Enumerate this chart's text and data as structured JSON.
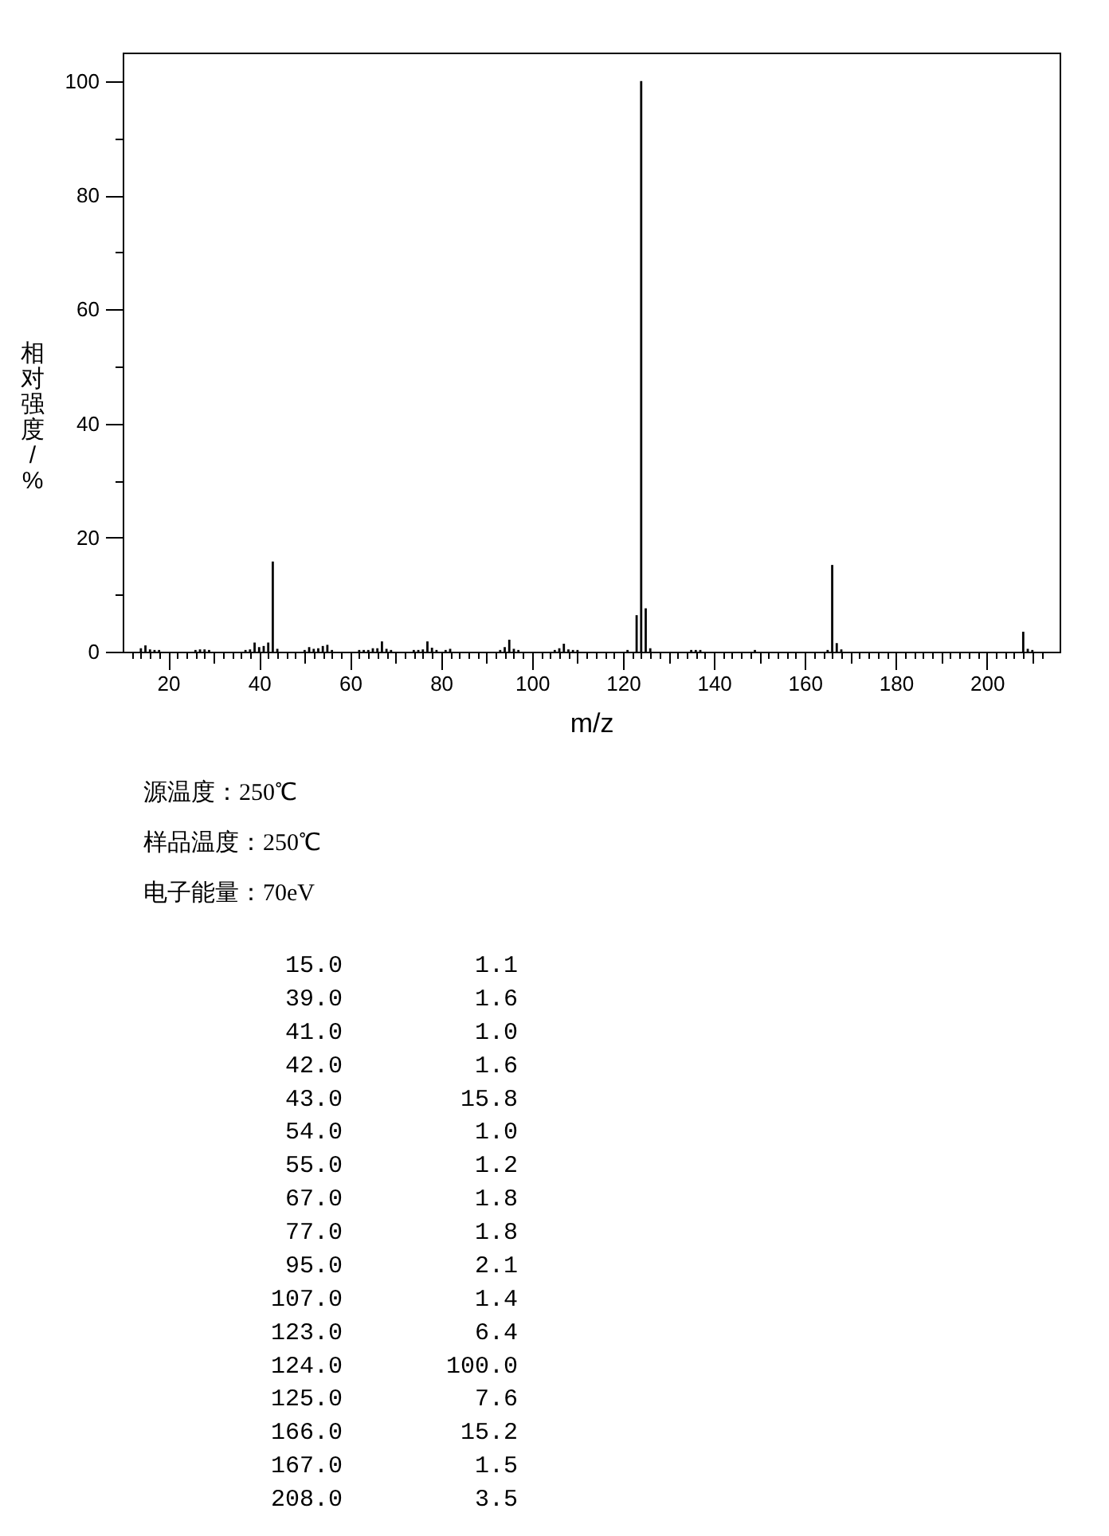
{
  "chart_data": {
    "type": "bar",
    "xlabel": "m/z",
    "ylabel": "相对强度/%",
    "color": "#000000",
    "x": [
      14,
      15,
      16,
      17,
      18,
      26,
      27,
      28,
      29,
      37,
      38,
      39,
      40,
      41,
      42,
      43,
      44,
      50,
      51,
      52,
      53,
      54,
      55,
      56,
      62,
      63,
      64,
      65,
      66,
      67,
      68,
      69,
      74,
      75,
      76,
      77,
      78,
      79,
      81,
      82,
      93,
      94,
      95,
      96,
      97,
      105,
      106,
      107,
      108,
      109,
      110,
      121,
      123,
      124,
      125,
      126,
      135,
      136,
      137,
      149,
      165,
      166,
      167,
      168,
      208,
      209,
      210
    ],
    "values": [
      0.6,
      1.1,
      0.4,
      0.3,
      0.3,
      0.3,
      0.4,
      0.4,
      0.3,
      0.3,
      0.4,
      1.6,
      0.8,
      1.0,
      1.6,
      15.8,
      0.5,
      0.3,
      0.8,
      0.5,
      0.6,
      1.0,
      1.2,
      0.3,
      0.3,
      0.3,
      0.3,
      0.6,
      0.6,
      1.8,
      0.5,
      0.3,
      0.3,
      0.3,
      0.4,
      1.8,
      0.7,
      0.3,
      0.3,
      0.5,
      0.3,
      0.8,
      2.1,
      0.5,
      0.3,
      0.3,
      0.6,
      1.4,
      0.4,
      0.3,
      0.3,
      0.3,
      6.4,
      100.0,
      7.6,
      0.6,
      0.3,
      0.3,
      0.3,
      0.3,
      0.3,
      15.2,
      1.5,
      0.4,
      3.5,
      0.5,
      0.3
    ],
    "xlim": [
      10,
      216
    ],
    "ylim": [
      0,
      105
    ],
    "xticks": [
      {
        "value": 12,
        "label": null
      },
      {
        "value": 14,
        "label": null
      },
      {
        "value": 16,
        "label": null
      },
      {
        "value": 18,
        "label": null
      },
      20,
      {
        "value": 22,
        "label": null
      },
      {
        "value": 24,
        "label": null
      },
      {
        "value": 26,
        "label": null
      },
      {
        "value": 28,
        "label": null
      },
      {
        "value": 30,
        "label": null
      },
      {
        "value": 32,
        "label": null
      },
      {
        "value": 34,
        "label": null
      },
      {
        "value": 36,
        "label": null
      },
      {
        "value": 38,
        "label": null
      },
      40,
      {
        "value": 42,
        "label": null
      },
      {
        "value": 44,
        "label": null
      },
      {
        "value": 46,
        "label": null
      },
      {
        "value": 48,
        "label": null
      },
      {
        "value": 50,
        "label": null
      },
      {
        "value": 52,
        "label": null
      },
      {
        "value": 54,
        "label": null
      },
      {
        "value": 56,
        "label": null
      },
      {
        "value": 58,
        "label": null
      },
      60,
      {
        "value": 62,
        "label": null
      },
      {
        "value": 64,
        "label": null
      },
      {
        "value": 66,
        "label": null
      },
      {
        "value": 68,
        "label": null
      },
      {
        "value": 70,
        "label": null
      },
      {
        "value": 72,
        "label": null
      },
      {
        "value": 74,
        "label": null
      },
      {
        "value": 76,
        "label": null
      },
      {
        "value": 78,
        "label": null
      },
      80,
      {
        "value": 82,
        "label": null
      },
      {
        "value": 84,
        "label": null
      },
      {
        "value": 86,
        "label": null
      },
      {
        "value": 88,
        "label": null
      },
      {
        "value": 90,
        "label": null
      },
      {
        "value": 92,
        "label": null
      },
      {
        "value": 94,
        "label": null
      },
      {
        "value": 96,
        "label": null
      },
      {
        "value": 98,
        "label": null
      },
      100,
      {
        "value": 102,
        "label": null
      },
      {
        "value": 104,
        "label": null
      },
      {
        "value": 106,
        "label": null
      },
      {
        "value": 108,
        "label": null
      },
      {
        "value": 110,
        "label": null
      },
      {
        "value": 112,
        "label": null
      },
      {
        "value": 114,
        "label": null
      },
      {
        "value": 116,
        "label": null
      },
      {
        "value": 118,
        "label": null
      },
      120,
      {
        "value": 122,
        "label": null
      },
      {
        "value": 124,
        "label": null
      },
      {
        "value": 126,
        "label": null
      },
      {
        "value": 128,
        "label": null
      },
      {
        "value": 130,
        "label": null
      },
      {
        "value": 132,
        "label": null
      },
      {
        "value": 134,
        "label": null
      },
      {
        "value": 136,
        "label": null
      },
      {
        "value": 138,
        "label": null
      },
      140,
      {
        "value": 142,
        "label": null
      },
      {
        "value": 144,
        "label": null
      },
      {
        "value": 146,
        "label": null
      },
      {
        "value": 148,
        "label": null
      },
      {
        "value": 150,
        "label": null
      },
      {
        "value": 152,
        "label": null
      },
      {
        "value": 154,
        "label": null
      },
      {
        "value": 156,
        "label": null
      },
      {
        "value": 158,
        "label": null
      },
      160,
      {
        "value": 162,
        "label": null
      },
      {
        "value": 164,
        "label": null
      },
      {
        "value": 166,
        "label": null
      },
      {
        "value": 168,
        "label": null
      },
      {
        "value": 170,
        "label": null
      },
      {
        "value": 172,
        "label": null
      },
      {
        "value": 174,
        "label": null
      },
      {
        "value": 176,
        "label": null
      },
      {
        "value": 178,
        "label": null
      },
      180,
      {
        "value": 182,
        "label": null
      },
      {
        "value": 184,
        "label": null
      },
      {
        "value": 186,
        "label": null
      },
      {
        "value": 188,
        "label": null
      },
      {
        "value": 190,
        "label": null
      },
      {
        "value": 192,
        "label": null
      },
      {
        "value": 194,
        "label": null
      },
      {
        "value": 196,
        "label": null
      },
      {
        "value": 198,
        "label": null
      },
      200,
      {
        "value": 202,
        "label": null
      },
      {
        "value": 204,
        "label": null
      },
      {
        "value": 206,
        "label": null
      },
      {
        "value": 208,
        "label": null
      },
      {
        "value": 210,
        "label": null
      },
      {
        "value": 212,
        "label": null
      }
    ],
    "yticks": [
      0,
      {
        "value": 10,
        "label": null
      },
      20,
      {
        "value": 30,
        "label": null
      },
      40,
      {
        "value": 50,
        "label": null
      },
      60,
      {
        "value": 70,
        "label": null
      },
      80,
      {
        "value": 90,
        "label": null
      },
      100
    ],
    "annotations": [
      "源温度：250℃",
      "样品温度：250℃",
      "电子能量：70eV",
      "15.0",
      "1.1",
      "39.0",
      "1.6",
      "41.0",
      "1.0",
      "42.0",
      "1.6",
      "43.0",
      "15.8",
      "54.0",
      "1.0",
      "55.0",
      "1.2",
      "67.0",
      "1.8",
      "77.0",
      "1.8",
      "95.0",
      "2.1",
      "107.0",
      "1.4",
      "123.0",
      "6.4",
      "124.0",
      "100.0",
      "125.0",
      "7.6",
      "166.0",
      "15.2",
      "167.0",
      "1.5",
      "208.0",
      "3.5"
    ]
  }
}
